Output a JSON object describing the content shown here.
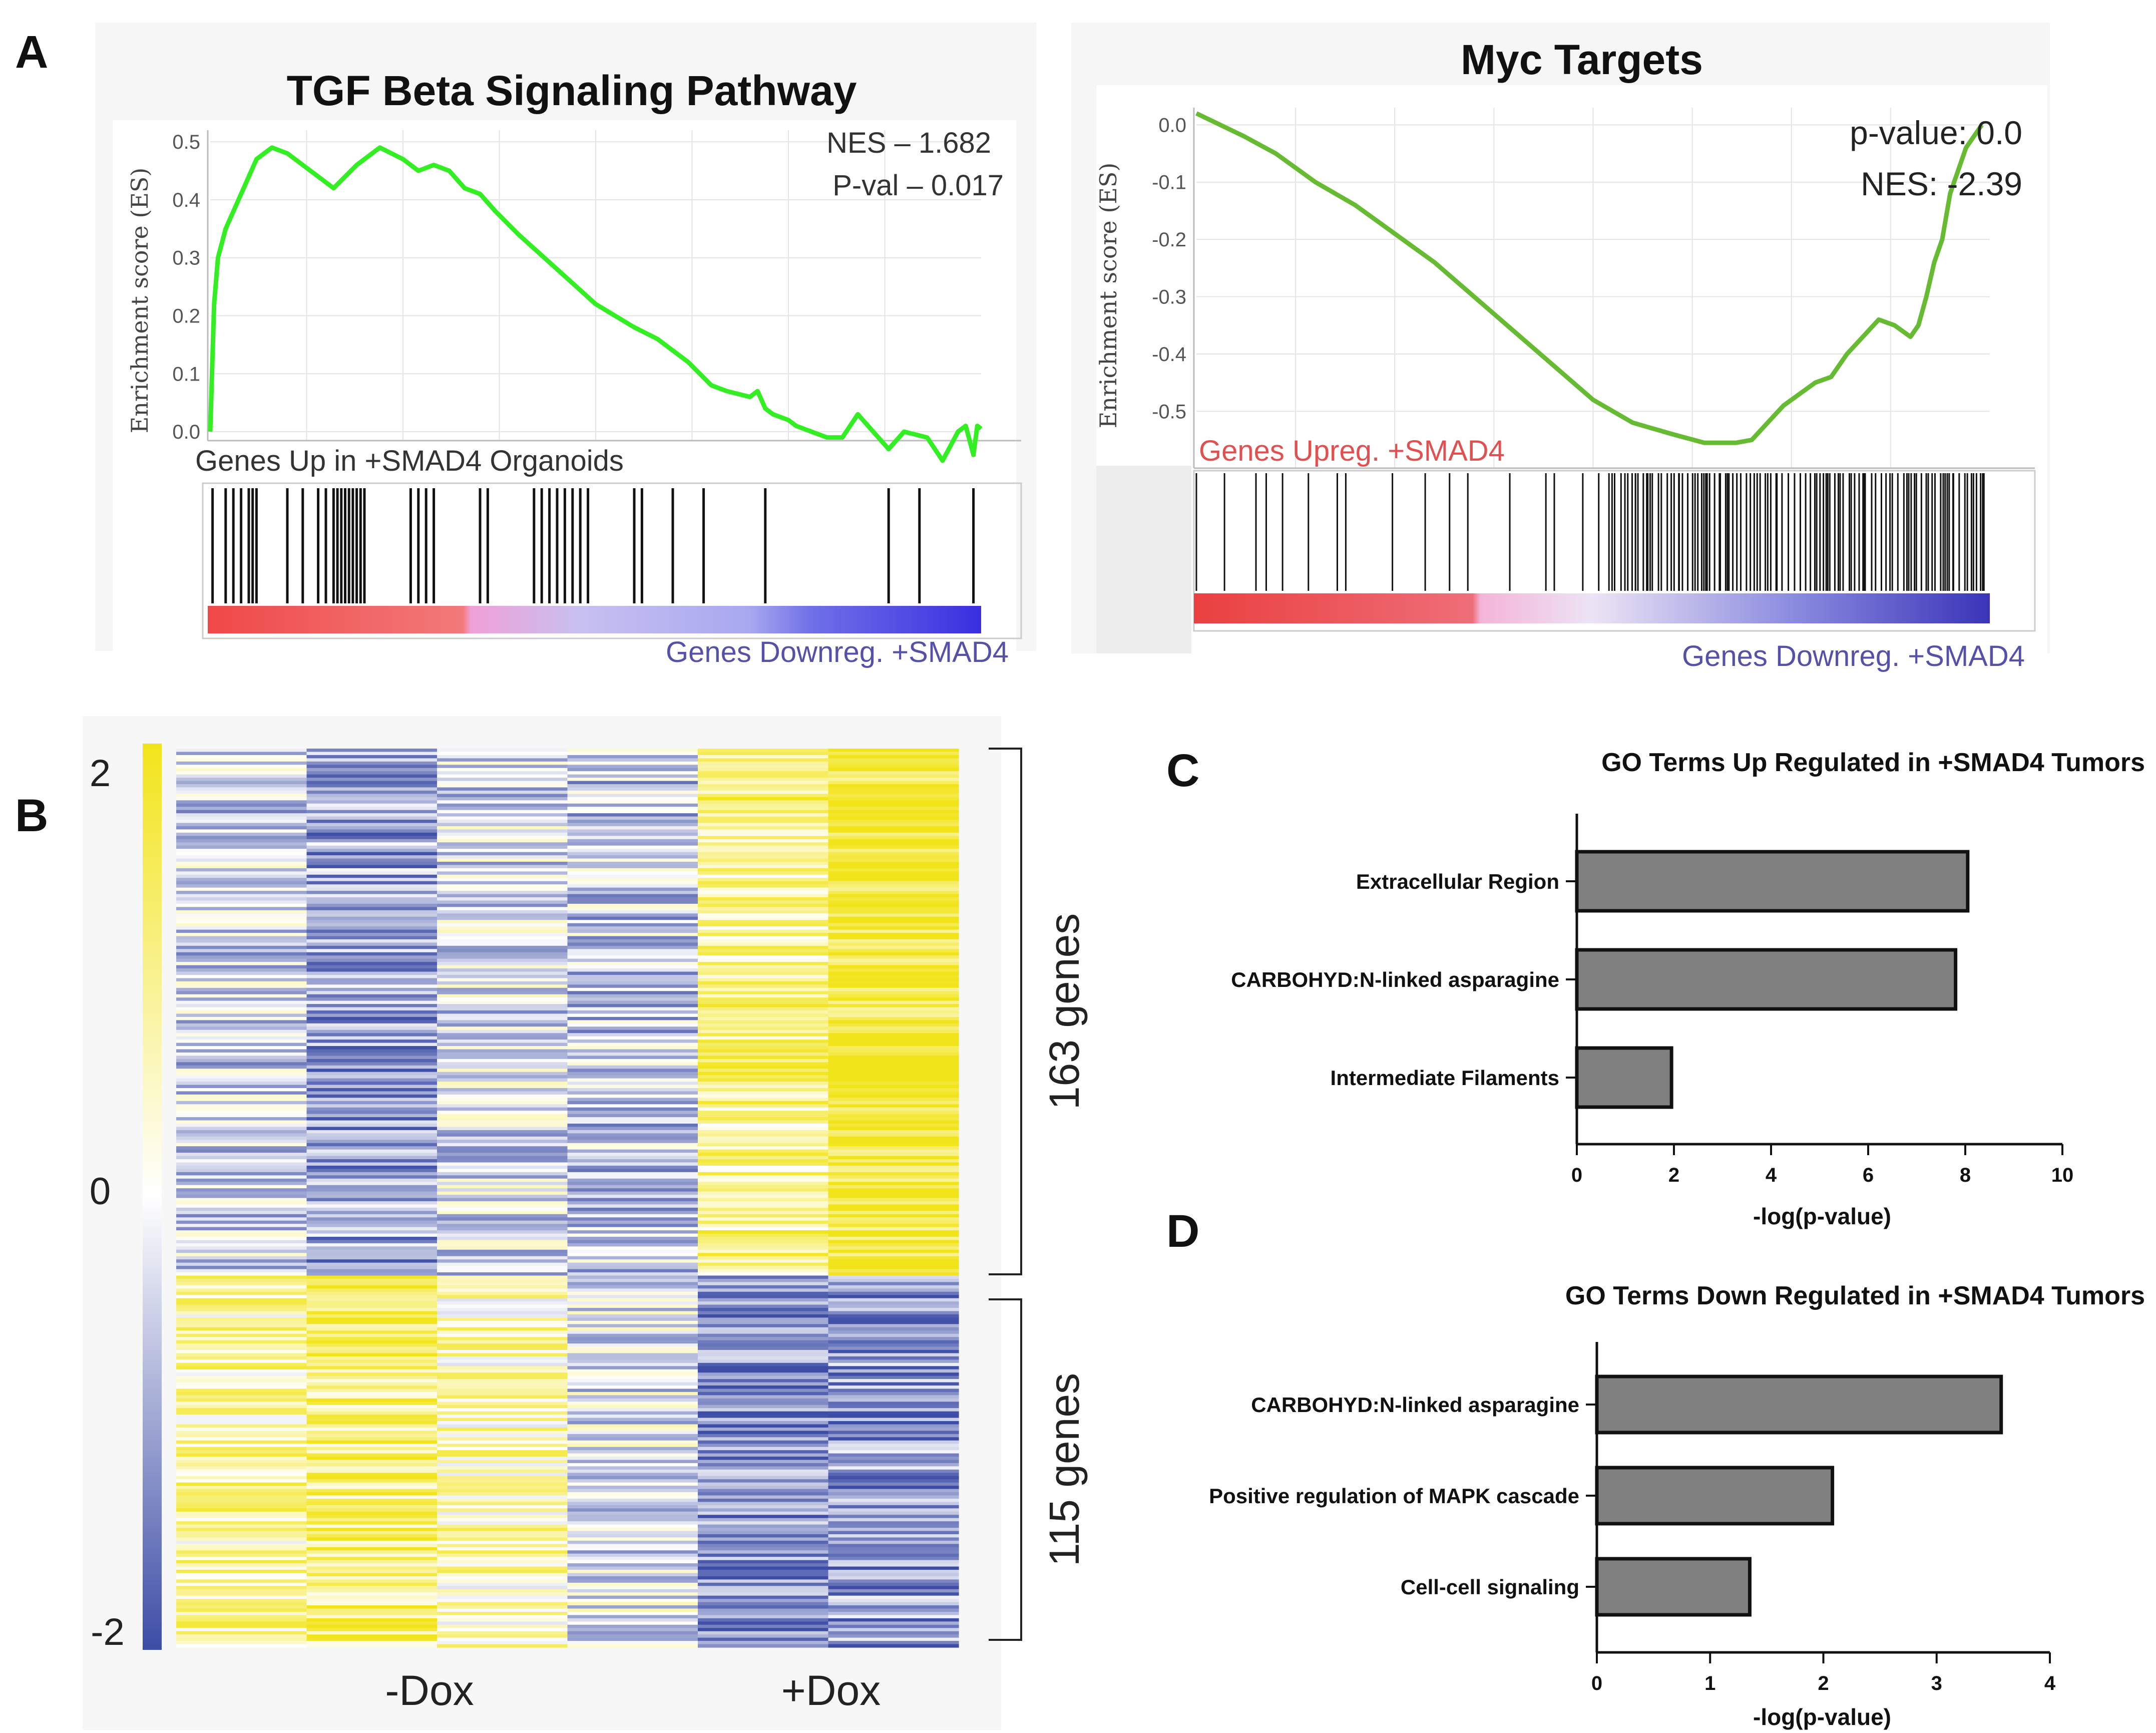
{
  "panels": {
    "a": "A",
    "b": "B",
    "c": "C",
    "d": "D"
  },
  "colors": {
    "es_line_tgf": "#33ee22",
    "es_line_myc": "#66bb33",
    "up_label": "#e05050",
    "down_label": "#5550a8",
    "heat_low": "#3d4da6",
    "heat_mid": "#ffffff",
    "heat_high": "#f2e41a",
    "bar_fill": "#808080"
  },
  "chart_data": [
    {
      "type": "line",
      "id": "gsea-tgf",
      "title": "TGF Beta Signaling Pathway",
      "ylabel": "Enrichment score (ES)",
      "xlabel": "",
      "ylim": [
        -0.05,
        0.52
      ],
      "yticks": [
        "0.5",
        "0.4",
        "0.3",
        "0.2",
        "0.1",
        "0.0"
      ],
      "ytick_values": [
        0.5,
        0.4,
        0.3,
        0.2,
        0.1,
        0.0
      ],
      "stats": [
        "NES – 1.682",
        "P-val – 0.017"
      ],
      "label_left": "Genes Up in +SMAD4 Organoids",
      "label_right": "Genes Downreg. +SMAD4",
      "x": [
        0,
        0.5,
        1,
        2,
        3,
        4,
        5,
        6,
        8,
        10,
        13,
        16,
        19,
        22,
        25,
        27,
        29,
        31,
        33,
        35,
        37,
        40,
        45,
        50,
        55,
        58,
        62,
        65,
        67,
        70,
        71,
        72,
        73,
        75,
        76,
        78,
        80,
        82,
        84,
        88,
        90,
        93,
        95,
        97,
        98,
        99,
        99.5,
        100
      ],
      "values": [
        0,
        0.22,
        0.3,
        0.35,
        0.38,
        0.41,
        0.44,
        0.47,
        0.49,
        0.48,
        0.45,
        0.42,
        0.46,
        0.49,
        0.47,
        0.45,
        0.46,
        0.45,
        0.42,
        0.41,
        0.38,
        0.34,
        0.28,
        0.22,
        0.18,
        0.16,
        0.12,
        0.08,
        0.07,
        0.06,
        0.07,
        0.04,
        0.03,
        0.02,
        0.01,
        0.0,
        -0.01,
        -0.01,
        0.03,
        -0.03,
        0.0,
        -0.01,
        -0.05,
        0.0,
        0.01,
        -0.04,
        0.01,
        0.005
      ],
      "hits": [
        0.3,
        2,
        3,
        4,
        5,
        5.5,
        6,
        10,
        12,
        14,
        15,
        16,
        16.5,
        17,
        17.5,
        18,
        18.5,
        19,
        19.5,
        20,
        26,
        27,
        28,
        29,
        35,
        36,
        42,
        43,
        44,
        45,
        46,
        47,
        48,
        49,
        55,
        56,
        60,
        64,
        72,
        88,
        92,
        99
      ]
    },
    {
      "type": "line",
      "id": "gsea-myc",
      "title": "Myc Targets",
      "ylabel": "Enrichment score (ES)",
      "xlabel": "",
      "ylim": [
        -0.56,
        0.03
      ],
      "yticks": [
        "0.0",
        "-0.1",
        "-0.2",
        "-0.3",
        "-0.4",
        "-0.5"
      ],
      "ytick_values": [
        0.0,
        -0.1,
        -0.2,
        -0.3,
        -0.4,
        -0.5
      ],
      "stats": [
        "p-value: 0.0",
        "NES: -2.39"
      ],
      "label_left": "Genes Upreg. +SMAD4",
      "label_right": "Genes Downreg. +SMAD4",
      "x": [
        0,
        3,
        6,
        10,
        15,
        20,
        25,
        30,
        35,
        40,
        45,
        50,
        55,
        60,
        64,
        68,
        70,
        72,
        74,
        76,
        78,
        80,
        82,
        84,
        86,
        88,
        90,
        91,
        92,
        93,
        94,
        95,
        96,
        97,
        98,
        99
      ],
      "values": [
        0.02,
        0.0,
        -0.02,
        -0.05,
        -0.1,
        -0.14,
        -0.19,
        -0.24,
        -0.3,
        -0.36,
        -0.42,
        -0.48,
        -0.52,
        -0.54,
        -0.555,
        -0.555,
        -0.55,
        -0.52,
        -0.49,
        -0.47,
        -0.45,
        -0.44,
        -0.4,
        -0.37,
        -0.34,
        -0.35,
        -0.37,
        -0.35,
        -0.3,
        -0.24,
        -0.2,
        -0.12,
        -0.08,
        -0.04,
        -0.02,
        0.0
      ]
    },
    {
      "type": "heatmap",
      "id": "heatmap-b",
      "columns": 6,
      "xlabels": [
        "-Dox",
        "+Dox"
      ],
      "colorbar_ticks": [
        "2",
        "0",
        "-2"
      ],
      "colorbar_values": [
        2,
        0,
        -2
      ],
      "clusters": [
        {
          "label": "163 genes",
          "rows": 163,
          "mean_z": [
            -0.5,
            -1.0,
            -0.4,
            -0.6,
            1.0,
            1.8
          ]
        },
        {
          "label": "115 genes",
          "rows": 115,
          "mean_z": [
            0.8,
            1.2,
            0.6,
            -0.3,
            -1.3,
            -1.1
          ]
        }
      ]
    },
    {
      "type": "bar",
      "id": "go-up",
      "orientation": "horizontal",
      "title": "GO Terms Up Regulated in +SMAD4 Tumors",
      "categories": [
        "Extracellular Region",
        "CARBOHYD:N-linked asparagine",
        "Intermediate Filaments"
      ],
      "values": [
        8.05,
        7.8,
        1.95
      ],
      "xlabel": "-log(p-value)",
      "xlim": [
        0,
        10
      ],
      "xticks": [
        "0",
        "2",
        "4",
        "6",
        "8",
        "10"
      ],
      "xtick_values": [
        0,
        2,
        4,
        6,
        8,
        10
      ]
    },
    {
      "type": "bar",
      "id": "go-down",
      "orientation": "horizontal",
      "title": "GO Terms Down Regulated in +SMAD4 Tumors",
      "categories": [
        "CARBOHYD:N-linked asparagine",
        "Positive regulation of MAPK cascade",
        "Cell-cell signaling"
      ],
      "values": [
        3.57,
        2.08,
        1.35
      ],
      "xlabel": "-log(p-value)",
      "xlim": [
        0,
        4
      ],
      "xticks": [
        "0",
        "1",
        "2",
        "3",
        "4"
      ],
      "xtick_values": [
        0,
        1,
        2,
        3,
        4
      ]
    }
  ]
}
